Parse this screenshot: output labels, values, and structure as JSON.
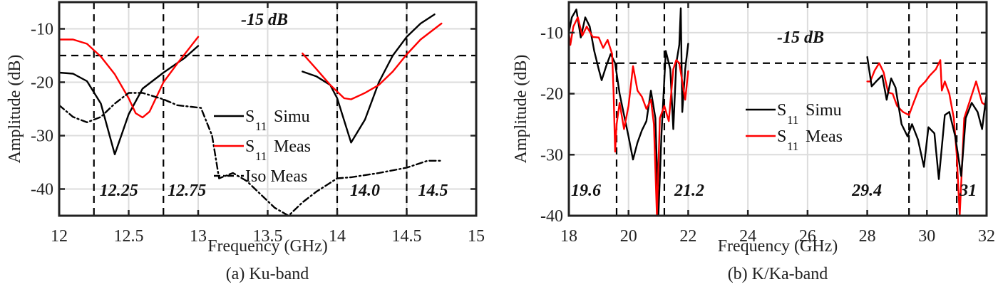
{
  "chart_data": [
    {
      "id": "a",
      "type": "line",
      "caption": "(a) Ku-band",
      "title": "",
      "xlabel": "Frequency (GHz)",
      "ylabel": "Amplitude (dB)",
      "xlim": [
        12,
        15
      ],
      "ylim": [
        -45,
        -5
      ],
      "xticks": [
        12,
        12.5,
        13,
        13.5,
        14,
        14.5,
        15
      ],
      "xtick_labels": [
        "12",
        "12.5",
        "13",
        "13.5",
        "14",
        "14.5",
        "15"
      ],
      "yticks": [
        -40,
        -30,
        -20,
        -10
      ],
      "ytick_labels": [
        "-40",
        "-30",
        "-20",
        "-10"
      ],
      "grid": true,
      "legend_position": "center-right",
      "threshold": {
        "value": -15,
        "label": "-15 dB"
      },
      "vlines": [
        {
          "x": 12.25,
          "label": "12.25"
        },
        {
          "x": 12.75,
          "label": "12.75"
        },
        {
          "x": 14.0,
          "label": "14.0"
        },
        {
          "x": 14.5,
          "label": "14.5"
        }
      ],
      "series": [
        {
          "name": "S11 Simu",
          "legend_main": "S",
          "legend_sub": "11",
          "legend_text": "Simu",
          "color": "#000000",
          "style": "solid",
          "segments": [
            {
              "x": [
                12.0,
                12.1,
                12.2,
                12.3,
                12.4,
                12.5,
                12.6,
                12.75,
                12.9,
                13.0
              ],
              "y": [
                -18.2,
                -18.4,
                -19.8,
                -24.0,
                -33.5,
                -26.0,
                -21.2,
                -18.2,
                -15.5,
                -13.2
              ]
            },
            {
              "x": [
                13.75,
                13.85,
                13.95,
                14.0,
                14.1,
                14.2,
                14.3,
                14.4,
                14.5,
                14.6,
                14.7
              ],
              "y": [
                -18.0,
                -18.9,
                -20.5,
                -23.0,
                -31.3,
                -27.0,
                -20.0,
                -15.0,
                -11.5,
                -9.0,
                -7.3
              ]
            }
          ]
        },
        {
          "name": "S11 Meas",
          "legend_main": "S",
          "legend_sub": "11",
          "legend_text": "Meas",
          "color": "#ff0000",
          "style": "solid",
          "segments": [
            {
              "x": [
                12.0,
                12.1,
                12.2,
                12.3,
                12.4,
                12.5,
                12.55,
                12.6,
                12.65,
                12.75,
                12.85,
                13.0
              ],
              "y": [
                -12.0,
                -12.0,
                -12.8,
                -15.2,
                -18.5,
                -23.0,
                -25.8,
                -26.6,
                -25.5,
                -20.0,
                -16.5,
                -11.5
              ]
            },
            {
              "x": [
                13.75,
                13.85,
                13.95,
                14.05,
                14.1,
                14.2,
                14.3,
                14.4,
                14.5,
                14.6,
                14.75
              ],
              "y": [
                -14.6,
                -17.5,
                -20.5,
                -23.0,
                -23.2,
                -22.0,
                -20.5,
                -18.0,
                -14.8,
                -12.0,
                -9.0
              ]
            }
          ]
        },
        {
          "name": "Iso Meas",
          "legend_text": "Iso Meas",
          "color": "#000000",
          "style": "dashdot",
          "segments": [
            {
              "x": [
                12.0,
                12.1,
                12.2,
                12.3,
                12.4,
                12.5,
                12.6,
                12.75,
                12.85,
                12.95,
                13.02,
                13.1,
                13.15,
                13.25,
                13.35,
                13.45,
                13.55,
                13.65,
                13.75,
                13.85,
                14.0,
                14.1,
                14.3,
                14.5,
                14.65,
                14.75
              ],
              "y": [
                -24.3,
                -26.5,
                -27.5,
                -26.5,
                -24.0,
                -22.0,
                -22.0,
                -23.2,
                -24.3,
                -24.6,
                -24.8,
                -30.0,
                -38.0,
                -37.0,
                -38.5,
                -41.0,
                -43.5,
                -45.0,
                -42.5,
                -40.5,
                -38.0,
                -37.8,
                -37.0,
                -36.0,
                -34.7,
                -34.7
              ]
            }
          ]
        }
      ]
    },
    {
      "id": "b",
      "type": "line",
      "caption": "(b) K/Ka-band",
      "title": "",
      "xlabel": "Frequency (GHz)",
      "ylabel": "Amplitude (dB)",
      "xlim": [
        18,
        32
      ],
      "ylim": [
        -40,
        -5
      ],
      "xticks": [
        18,
        20,
        22,
        24,
        26,
        28,
        30,
        32
      ],
      "xtick_labels": [
        "18",
        "20",
        "22",
        "24",
        "26",
        "28",
        "30",
        "32"
      ],
      "yticks": [
        -40,
        -30,
        -20,
        -10
      ],
      "ytick_labels": [
        "-40",
        "-30",
        "-20",
        "-10"
      ],
      "grid": true,
      "legend_position": "center",
      "threshold": {
        "value": -15,
        "label": "-15 dB"
      },
      "vlines": [
        {
          "x": 19.6,
          "label": "19.6"
        },
        {
          "x": 21.2,
          "label": "21.2"
        },
        {
          "x": 29.4,
          "label": "29.4"
        },
        {
          "x": 31,
          "label": "31"
        }
      ],
      "series": [
        {
          "name": "S11 Simu",
          "legend_main": "S",
          "legend_sub": "11",
          "legend_text": "Simu",
          "color": "#000000",
          "style": "solid",
          "segments": [
            {
              "x": [
                18.0,
                18.1,
                18.25,
                18.4,
                18.55,
                18.7,
                18.85,
                19.0,
                19.1,
                19.25,
                19.4,
                19.55,
                19.7,
                19.85,
                20.0,
                20.15,
                20.3,
                20.45,
                20.6,
                20.75,
                20.9,
                21.0,
                21.1,
                21.25,
                21.4,
                21.5,
                21.6,
                21.7,
                21.75,
                21.8,
                21.9,
                22.0
              ],
              "y": [
                -10.0,
                -7.5,
                -6.2,
                -10.8,
                -7.5,
                -9.0,
                -13.0,
                -16.0,
                -17.8,
                -15.5,
                -13.5,
                -15.0,
                -20.0,
                -23.5,
                -27.0,
                -30.8,
                -28.0,
                -26.0,
                -24.5,
                -19.5,
                -24.0,
                -40.0,
                -27.0,
                -13.0,
                -16.0,
                -25.8,
                -15.0,
                -12.0,
                -6.0,
                -23.0,
                -16.0,
                -11.8
              ]
            }
          ]
        },
        {
          "name": "S11 Meas",
          "legend_main": "S",
          "legend_sub": "11",
          "legend_text": "Meas",
          "color": "#ff0000",
          "style": "solid",
          "segments": [
            {
              "x": [
                18.0,
                18.05,
                18.15,
                18.3,
                18.45,
                18.6,
                18.8,
                19.0,
                19.15,
                19.3,
                19.45,
                19.5,
                19.55,
                19.6,
                19.7,
                19.85,
                20.0,
                20.15,
                20.3,
                20.45,
                20.6,
                20.75,
                20.85,
                20.95,
                21.05,
                21.2,
                21.35,
                21.5,
                21.6,
                21.7,
                21.8,
                21.9,
                22.0
              ],
              "y": [
                -10.0,
                -12.0,
                -9.0,
                -7.5,
                -10.5,
                -9.0,
                -10.7,
                -10.8,
                -12.5,
                -11.2,
                -13.5,
                -20.0,
                -29.5,
                -25.0,
                -21.5,
                -25.8,
                -22.0,
                -15.5,
                -19.5,
                -20.5,
                -22.5,
                -21.0,
                -25.0,
                -40.0,
                -24.0,
                -22.0,
                -24.5,
                -16.0,
                -14.5,
                -15.0,
                -18.0,
                -21.0,
                -16.3
              ]
            },
            {
              "x": [
                28.0,
                28.1,
                28.25,
                28.4,
                28.55,
                28.7,
                28.85,
                29.0,
                29.2,
                29.4,
                29.55,
                29.75,
                29.95,
                30.1,
                30.3,
                30.45,
                30.5,
                30.6,
                30.75,
                30.9,
                31.0,
                31.1,
                31.25,
                31.45,
                31.65,
                31.85,
                32.0
              ],
              "y": [
                -18.0,
                -18.0,
                -16.2,
                -15.0,
                -16.5,
                -19.8,
                -20.0,
                -22.0,
                -23.0,
                -23.5,
                -21.5,
                -19.0,
                -18.0,
                -17.0,
                -16.0,
                -14.5,
                -19.5,
                -18.0,
                -20.0,
                -24.0,
                -30.0,
                -40.0,
                -24.0,
                -21.0,
                -18.0,
                -21.5,
                -22.0
              ]
            }
          ]
        },
        {
          "name": "S11 Simu (Ka)",
          "color": "#000000",
          "style": "solid",
          "legend_hidden": true,
          "segments": [
            {
              "x": [
                28.0,
                28.15,
                28.3,
                28.5,
                28.65,
                28.8,
                28.95,
                29.15,
                29.35,
                29.5,
                29.7,
                29.9,
                30.05,
                30.25,
                30.4,
                30.6,
                30.75,
                30.95,
                31.15,
                31.3,
                31.5,
                31.7,
                31.85,
                32.0
              ],
              "y": [
                -14.0,
                -18.8,
                -18.0,
                -17.0,
                -21.0,
                -17.5,
                -19.0,
                -25.0,
                -27.0,
                -25.0,
                -27.5,
                -32.0,
                -25.5,
                -26.5,
                -34.0,
                -23.5,
                -23.0,
                -27.0,
                -33.5,
                -24.0,
                -21.5,
                -23.0,
                -25.8,
                -20.0
              ]
            }
          ]
        }
      ]
    }
  ]
}
